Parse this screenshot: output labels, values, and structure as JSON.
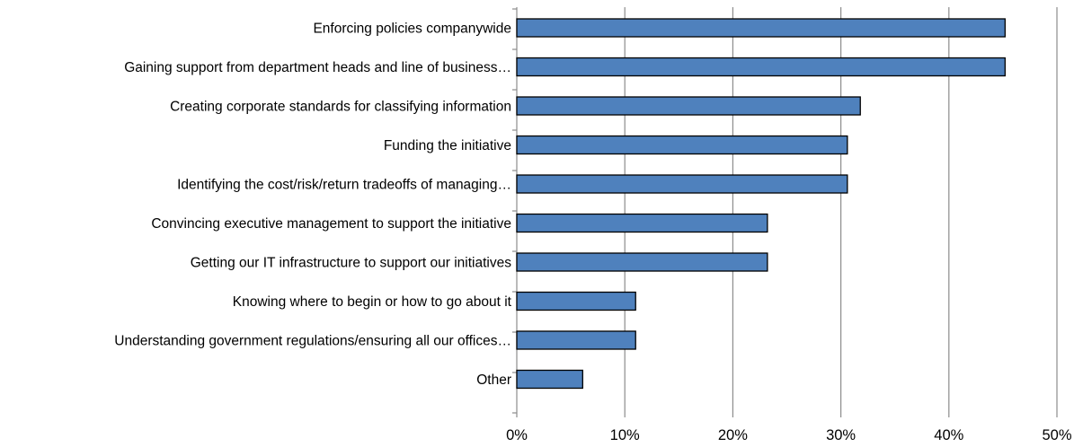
{
  "chart_data": {
    "type": "bar",
    "orientation": "horizontal",
    "categories": [
      "Enforcing policies companywide",
      "Gaining support from department heads and line of business…",
      "Creating corporate standards for classifying information",
      "Funding the initiative",
      "Identifying the cost/risk/return tradeoffs of managing…",
      "Convincing executive management to support the initiative",
      "Getting our IT infrastructure to support our initiatives",
      "Knowing where to begin or how to go about it",
      "Understanding government regulations/ensuring all our offices…",
      "Other"
    ],
    "values": [
      45.2,
      45.2,
      31.8,
      30.6,
      30.6,
      23.2,
      23.2,
      11.0,
      11.0,
      6.1
    ],
    "xlim": [
      0,
      50
    ],
    "xticks": [
      0,
      10,
      20,
      30,
      40,
      50
    ],
    "xtick_labels": [
      "0%",
      "10%",
      "20%",
      "30%",
      "40%",
      "50%"
    ],
    "title": "",
    "xlabel": "",
    "ylabel": "",
    "grid": "vertical",
    "legend": "none",
    "colors": {
      "bar_fill": "#4f81bd",
      "bar_edge": "#000000",
      "grid": "#8c8c8c"
    }
  }
}
